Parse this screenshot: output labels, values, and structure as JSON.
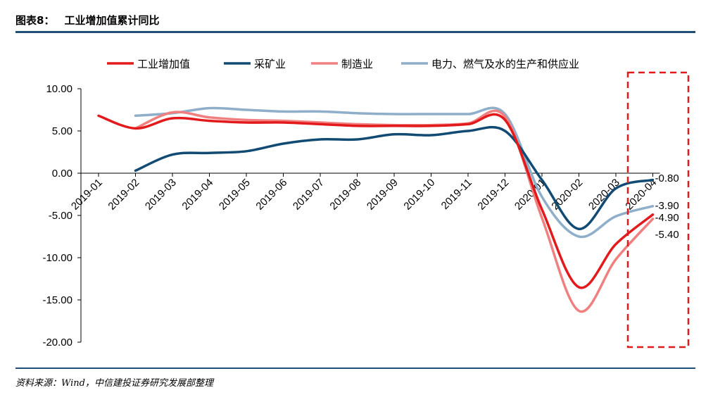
{
  "header": {
    "figure_label": "图表8：",
    "title": "工业增加值累计同比"
  },
  "source": "资料来源：Wind，中信建投证券研究发展部整理",
  "chart_data": {
    "type": "line",
    "title": "工业增加值累计同比",
    "categories": [
      "2019-01",
      "2019-02",
      "2019-03",
      "2019-04",
      "2019-05",
      "2019-06",
      "2019-07",
      "2019-08",
      "2019-09",
      "2019-10",
      "2019-11",
      "2019-12",
      "2020-01",
      "2020-02",
      "2020-03",
      "2020-04"
    ],
    "ylim": [
      -20,
      10
    ],
    "yticks": [
      10,
      5,
      0,
      -5,
      -10,
      -15,
      -20
    ],
    "ytick_labels": [
      "10.00",
      "5.00",
      "0.00",
      "-5.00",
      "-10.00",
      "-15.00",
      "-20.00"
    ],
    "legend_position": "top",
    "highlight_box": "last-category",
    "series": [
      {
        "name": "工业增加值",
        "color": "#e31a1c",
        "values": [
          6.8,
          5.3,
          6.5,
          6.2,
          6.0,
          6.0,
          5.8,
          5.6,
          5.6,
          5.6,
          5.8,
          6.3,
          -4.3,
          -13.5,
          -8.4,
          -4.9
        ],
        "end_label": "-4.90"
      },
      {
        "name": "采矿业",
        "color": "#114a72",
        "values": [
          null,
          0.3,
          2.2,
          2.4,
          2.6,
          3.5,
          4.0,
          4.0,
          4.6,
          4.5,
          5.0,
          5.0,
          -0.8,
          -6.6,
          -1.8,
          -0.8
        ],
        "end_label": "-0.80"
      },
      {
        "name": "制造业",
        "color": "#f08080",
        "values": [
          null,
          5.3,
          7.2,
          6.6,
          6.3,
          6.2,
          6.0,
          5.8,
          5.7,
          5.7,
          5.9,
          6.7,
          -5.3,
          -16.3,
          -10.2,
          -5.4
        ],
        "end_label": "-5.40"
      },
      {
        "name": "电力、燃气及水的生产和供应业",
        "color": "#8faec9",
        "values": [
          null,
          6.8,
          7.1,
          7.7,
          7.5,
          7.3,
          7.3,
          7.1,
          7.0,
          7.0,
          7.0,
          7.0,
          -2.8,
          -7.5,
          -5.1,
          -3.9
        ],
        "end_label": "-3.90"
      }
    ]
  }
}
